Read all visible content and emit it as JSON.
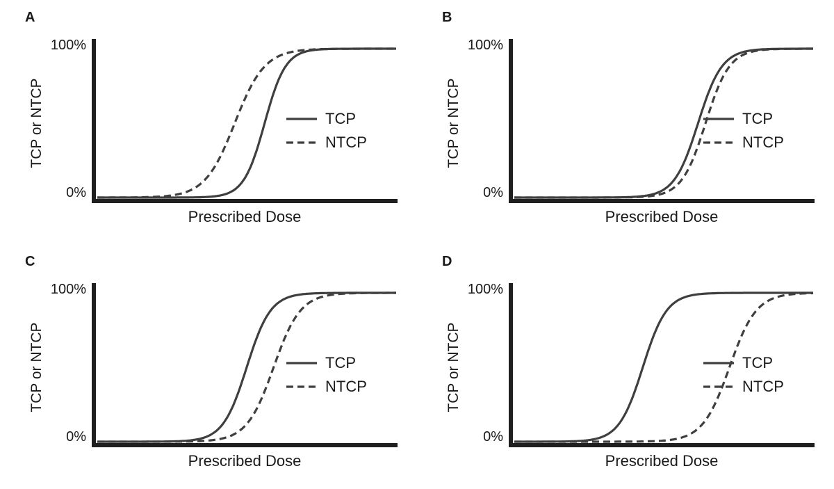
{
  "figure": {
    "background": "#ffffff",
    "curve_color": "#3f3f3f",
    "axis_color": "#1f1f1f"
  },
  "chart_data": [
    {
      "panel": "A",
      "type": "line",
      "xlabel": "Prescribed Dose",
      "ylabel": "TCP or NTCP",
      "ytick_labels": [
        "0%",
        "100%"
      ],
      "xlim": [
        0,
        1
      ],
      "ylim": [
        0,
        1
      ],
      "grid": false,
      "legend_position": "center-right",
      "legend": [
        "TCP",
        "NTCP"
      ],
      "x_samples": [
        0,
        0.1,
        0.2,
        0.3,
        0.4,
        0.5,
        0.6,
        0.7,
        0.8,
        0.9,
        1.0
      ],
      "series": [
        {
          "name": "TCP",
          "style": "solid",
          "sigmoid": {
            "midpoint": 0.56,
            "scale": 0.035
          },
          "values": [
            0,
            0,
            0,
            0,
            0.01,
            0.15,
            0.76,
            0.98,
            1,
            1,
            1
          ]
        },
        {
          "name": "NTCP",
          "style": "dashed",
          "sigmoid": {
            "midpoint": 0.46,
            "scale": 0.05
          },
          "values": [
            0,
            0,
            0.01,
            0.04,
            0.23,
            0.69,
            0.94,
            0.99,
            1,
            1,
            1
          ]
        }
      ]
    },
    {
      "panel": "B",
      "type": "line",
      "xlabel": "Prescribed Dose",
      "ylabel": "TCP or NTCP",
      "ytick_labels": [
        "0%",
        "100%"
      ],
      "xlim": [
        0,
        1
      ],
      "ylim": [
        0,
        1
      ],
      "grid": false,
      "legend_position": "center-right",
      "legend": [
        "TCP",
        "NTCP"
      ],
      "x_samples": [
        0,
        0.1,
        0.2,
        0.3,
        0.4,
        0.5,
        0.6,
        0.7,
        0.8,
        0.9,
        1.0
      ],
      "series": [
        {
          "name": "TCP",
          "style": "solid",
          "sigmoid": {
            "midpoint": 0.615,
            "scale": 0.04
          },
          "values": [
            0,
            0,
            0,
            0,
            0.01,
            0.05,
            0.41,
            0.89,
            0.99,
            1,
            1
          ]
        },
        {
          "name": "NTCP",
          "style": "dashed",
          "sigmoid": {
            "midpoint": 0.64,
            "scale": 0.04
          },
          "values": [
            0,
            0,
            0,
            0,
            0,
            0.03,
            0.27,
            0.82,
            0.98,
            1,
            1
          ]
        }
      ]
    },
    {
      "panel": "C",
      "type": "line",
      "xlabel": "Prescribed Dose",
      "ylabel": "TCP or NTCP",
      "ytick_labels": [
        "0%",
        "100%"
      ],
      "xlim": [
        0,
        1
      ],
      "ylim": [
        0,
        1
      ],
      "grid": false,
      "legend_position": "center-right",
      "legend": [
        "TCP",
        "NTCP"
      ],
      "x_samples": [
        0,
        0.1,
        0.2,
        0.3,
        0.4,
        0.5,
        0.6,
        0.7,
        0.8,
        0.9,
        1.0
      ],
      "series": [
        {
          "name": "TCP",
          "style": "solid",
          "sigmoid": {
            "midpoint": 0.5,
            "scale": 0.04
          },
          "values": [
            0,
            0,
            0,
            0.01,
            0.08,
            0.5,
            0.92,
            0.99,
            1,
            1,
            1
          ]
        },
        {
          "name": "NTCP",
          "style": "dashed",
          "sigmoid": {
            "midpoint": 0.59,
            "scale": 0.045
          },
          "values": [
            0,
            0,
            0,
            0,
            0.01,
            0.12,
            0.56,
            0.92,
            0.99,
            1,
            1
          ]
        }
      ]
    },
    {
      "panel": "D",
      "type": "line",
      "xlabel": "Prescribed Dose",
      "ylabel": "TCP or NTCP",
      "ytick_labels": [
        "0%",
        "100%"
      ],
      "xlim": [
        0,
        1
      ],
      "ylim": [
        0,
        1
      ],
      "grid": false,
      "legend_position": "center-right",
      "legend": [
        "TCP",
        "NTCP"
      ],
      "x_samples": [
        0,
        0.1,
        0.2,
        0.3,
        0.4,
        0.5,
        0.6,
        0.7,
        0.8,
        0.9,
        1.0
      ],
      "series": [
        {
          "name": "TCP",
          "style": "solid",
          "sigmoid": {
            "midpoint": 0.43,
            "scale": 0.04
          },
          "values": [
            0,
            0,
            0,
            0.04,
            0.32,
            0.85,
            0.99,
            1,
            1,
            1,
            1
          ]
        },
        {
          "name": "NTCP",
          "style": "dashed",
          "sigmoid": {
            "midpoint": 0.72,
            "scale": 0.045
          },
          "values": [
            0,
            0,
            0,
            0,
            0,
            0.01,
            0.07,
            0.39,
            0.86,
            0.98,
            1
          ]
        }
      ]
    }
  ]
}
